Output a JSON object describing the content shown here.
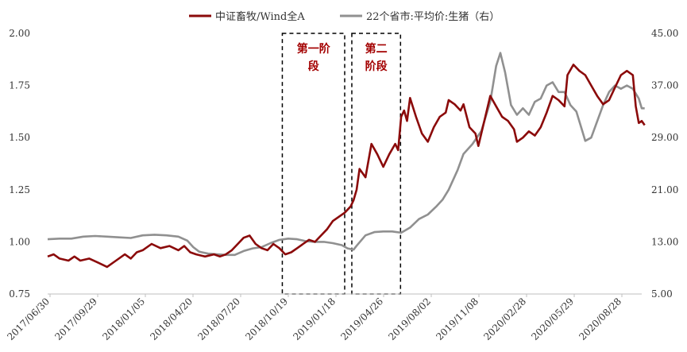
{
  "chart_data": {
    "type": "line",
    "legend_position": "top-center",
    "grid": false,
    "x_ticks": [
      "2017/06/30",
      "2017/09/29",
      "2018/01/05",
      "2018/04/20",
      "2018/07/20",
      "2018/10/19",
      "2019/01/18",
      "2019/04/26",
      "2019/08/02",
      "2019/11/08",
      "2020/02/28",
      "2020/05/29",
      "2020/08/28"
    ],
    "left_axis": {
      "ticks": [
        "0.75",
        "1.00",
        "1.25",
        "1.50",
        "1.75",
        "2.00"
      ],
      "ylim": [
        0.75,
        2.0
      ]
    },
    "right_axis": {
      "ticks": [
        "5.00",
        "13.00",
        "21.00",
        "29.00",
        "37.00",
        "45.00"
      ],
      "ylim": [
        5.0,
        45.0
      ]
    },
    "annotations": [
      {
        "label": "第一阶段",
        "lines": [
          "第一阶",
          "段"
        ],
        "x_start": 0.395,
        "x_end": 0.5
      },
      {
        "label": "第二阶段",
        "lines": [
          "第二",
          "阶段"
        ],
        "x_start": 0.512,
        "x_end": 0.594
      }
    ],
    "series": [
      {
        "name": "中证畜牧/Wind全A",
        "axis": "left",
        "color": "#8b0a0a",
        "values": [
          [
            0.0,
            0.93
          ],
          [
            0.01,
            0.94
          ],
          [
            0.02,
            0.92
          ],
          [
            0.035,
            0.91
          ],
          [
            0.045,
            0.93
          ],
          [
            0.055,
            0.91
          ],
          [
            0.07,
            0.92
          ],
          [
            0.085,
            0.9
          ],
          [
            0.1,
            0.88
          ],
          [
            0.115,
            0.91
          ],
          [
            0.13,
            0.94
          ],
          [
            0.14,
            0.92
          ],
          [
            0.15,
            0.95
          ],
          [
            0.16,
            0.96
          ],
          [
            0.175,
            0.99
          ],
          [
            0.19,
            0.97
          ],
          [
            0.205,
            0.98
          ],
          [
            0.22,
            0.96
          ],
          [
            0.23,
            0.98
          ],
          [
            0.24,
            0.95
          ],
          [
            0.25,
            0.94
          ],
          [
            0.265,
            0.93
          ],
          [
            0.28,
            0.94
          ],
          [
            0.29,
            0.93
          ],
          [
            0.3,
            0.94
          ],
          [
            0.31,
            0.96
          ],
          [
            0.32,
            0.99
          ],
          [
            0.33,
            1.02
          ],
          [
            0.34,
            1.03
          ],
          [
            0.35,
            0.99
          ],
          [
            0.36,
            0.97
          ],
          [
            0.37,
            0.96
          ],
          [
            0.38,
            0.99
          ],
          [
            0.39,
            0.97
          ],
          [
            0.4,
            0.94
          ],
          [
            0.41,
            0.95
          ],
          [
            0.42,
            0.97
          ],
          [
            0.43,
            0.99
          ],
          [
            0.44,
            1.01
          ],
          [
            0.45,
            1.0
          ],
          [
            0.46,
            1.03
          ],
          [
            0.47,
            1.06
          ],
          [
            0.48,
            1.1
          ],
          [
            0.49,
            1.12
          ],
          [
            0.5,
            1.14
          ],
          [
            0.51,
            1.17
          ],
          [
            0.515,
            1.2
          ],
          [
            0.52,
            1.25
          ],
          [
            0.525,
            1.35
          ],
          [
            0.535,
            1.31
          ],
          [
            0.545,
            1.47
          ],
          [
            0.555,
            1.42
          ],
          [
            0.565,
            1.36
          ],
          [
            0.575,
            1.42
          ],
          [
            0.585,
            1.47
          ],
          [
            0.59,
            1.44
          ],
          [
            0.595,
            1.6
          ],
          [
            0.6,
            1.63
          ],
          [
            0.605,
            1.58
          ],
          [
            0.61,
            1.69
          ],
          [
            0.62,
            1.6
          ],
          [
            0.63,
            1.52
          ],
          [
            0.64,
            1.48
          ],
          [
            0.65,
            1.55
          ],
          [
            0.66,
            1.6
          ],
          [
            0.67,
            1.62
          ],
          [
            0.675,
            1.68
          ],
          [
            0.685,
            1.66
          ],
          [
            0.695,
            1.63
          ],
          [
            0.7,
            1.66
          ],
          [
            0.71,
            1.55
          ],
          [
            0.72,
            1.52
          ],
          [
            0.725,
            1.46
          ],
          [
            0.735,
            1.58
          ],
          [
            0.745,
            1.7
          ],
          [
            0.755,
            1.65
          ],
          [
            0.765,
            1.6
          ],
          [
            0.775,
            1.58
          ],
          [
            0.785,
            1.54
          ],
          [
            0.79,
            1.48
          ],
          [
            0.8,
            1.5
          ],
          [
            0.81,
            1.53
          ],
          [
            0.82,
            1.51
          ],
          [
            0.83,
            1.55
          ],
          [
            0.84,
            1.62
          ],
          [
            0.85,
            1.7
          ],
          [
            0.86,
            1.68
          ],
          [
            0.87,
            1.65
          ],
          [
            0.875,
            1.8
          ],
          [
            0.885,
            1.85
          ],
          [
            0.895,
            1.82
          ],
          [
            0.905,
            1.8
          ],
          [
            0.915,
            1.75
          ],
          [
            0.925,
            1.7
          ],
          [
            0.935,
            1.66
          ],
          [
            0.945,
            1.68
          ],
          [
            0.955,
            1.74
          ],
          [
            0.965,
            1.8
          ],
          [
            0.975,
            1.82
          ],
          [
            0.985,
            1.8
          ],
          [
            0.99,
            1.65
          ],
          [
            0.995,
            1.57
          ],
          [
            1.0,
            1.58
          ],
          [
            1.005,
            1.56
          ]
        ]
      },
      {
        "name": "22个省市:平均价:生猪（右）",
        "axis": "right",
        "color": "#909090",
        "values": [
          [
            0.0,
            13.4
          ],
          [
            0.02,
            13.5
          ],
          [
            0.04,
            13.5
          ],
          [
            0.06,
            13.8
          ],
          [
            0.08,
            13.9
          ],
          [
            0.1,
            13.8
          ],
          [
            0.12,
            13.7
          ],
          [
            0.14,
            13.6
          ],
          [
            0.16,
            14.0
          ],
          [
            0.18,
            14.1
          ],
          [
            0.2,
            14.0
          ],
          [
            0.22,
            13.8
          ],
          [
            0.235,
            13.2
          ],
          [
            0.245,
            12.2
          ],
          [
            0.255,
            11.5
          ],
          [
            0.27,
            11.2
          ],
          [
            0.285,
            11.1
          ],
          [
            0.3,
            11.0
          ],
          [
            0.315,
            11.0
          ],
          [
            0.33,
            11.6
          ],
          [
            0.345,
            12.0
          ],
          [
            0.36,
            12.2
          ],
          [
            0.375,
            12.8
          ],
          [
            0.39,
            13.3
          ],
          [
            0.405,
            13.5
          ],
          [
            0.42,
            13.4
          ],
          [
            0.435,
            13.1
          ],
          [
            0.45,
            13.0
          ],
          [
            0.465,
            13.0
          ],
          [
            0.48,
            12.8
          ],
          [
            0.495,
            12.5
          ],
          [
            0.505,
            12.0
          ],
          [
            0.515,
            11.8
          ],
          [
            0.52,
            12.4
          ],
          [
            0.535,
            14.0
          ],
          [
            0.55,
            14.5
          ],
          [
            0.565,
            14.6
          ],
          [
            0.58,
            14.6
          ],
          [
            0.595,
            14.4
          ],
          [
            0.61,
            15.2
          ],
          [
            0.625,
            16.5
          ],
          [
            0.64,
            17.2
          ],
          [
            0.655,
            18.5
          ],
          [
            0.665,
            19.5
          ],
          [
            0.675,
            21.0
          ],
          [
            0.69,
            24.0
          ],
          [
            0.7,
            26.5
          ],
          [
            0.715,
            28.0
          ],
          [
            0.73,
            30.0
          ],
          [
            0.745,
            34.5
          ],
          [
            0.755,
            40.0
          ],
          [
            0.762,
            42.0
          ],
          [
            0.77,
            39.0
          ],
          [
            0.78,
            34.0
          ],
          [
            0.79,
            32.5
          ],
          [
            0.8,
            33.5
          ],
          [
            0.81,
            32.5
          ],
          [
            0.82,
            34.5
          ],
          [
            0.83,
            35.0
          ],
          [
            0.84,
            37.0
          ],
          [
            0.85,
            37.5
          ],
          [
            0.86,
            36.0
          ],
          [
            0.87,
            36.0
          ],
          [
            0.88,
            34.0
          ],
          [
            0.89,
            33.0
          ],
          [
            0.9,
            30.0
          ],
          [
            0.905,
            28.5
          ],
          [
            0.915,
            29.0
          ],
          [
            0.925,
            31.5
          ],
          [
            0.935,
            34.0
          ],
          [
            0.945,
            36.0
          ],
          [
            0.955,
            37.0
          ],
          [
            0.965,
            36.5
          ],
          [
            0.975,
            37.0
          ],
          [
            0.985,
            36.5
          ],
          [
            0.995,
            35.0
          ],
          [
            1.0,
            33.5
          ],
          [
            1.005,
            33.5
          ]
        ]
      }
    ]
  }
}
